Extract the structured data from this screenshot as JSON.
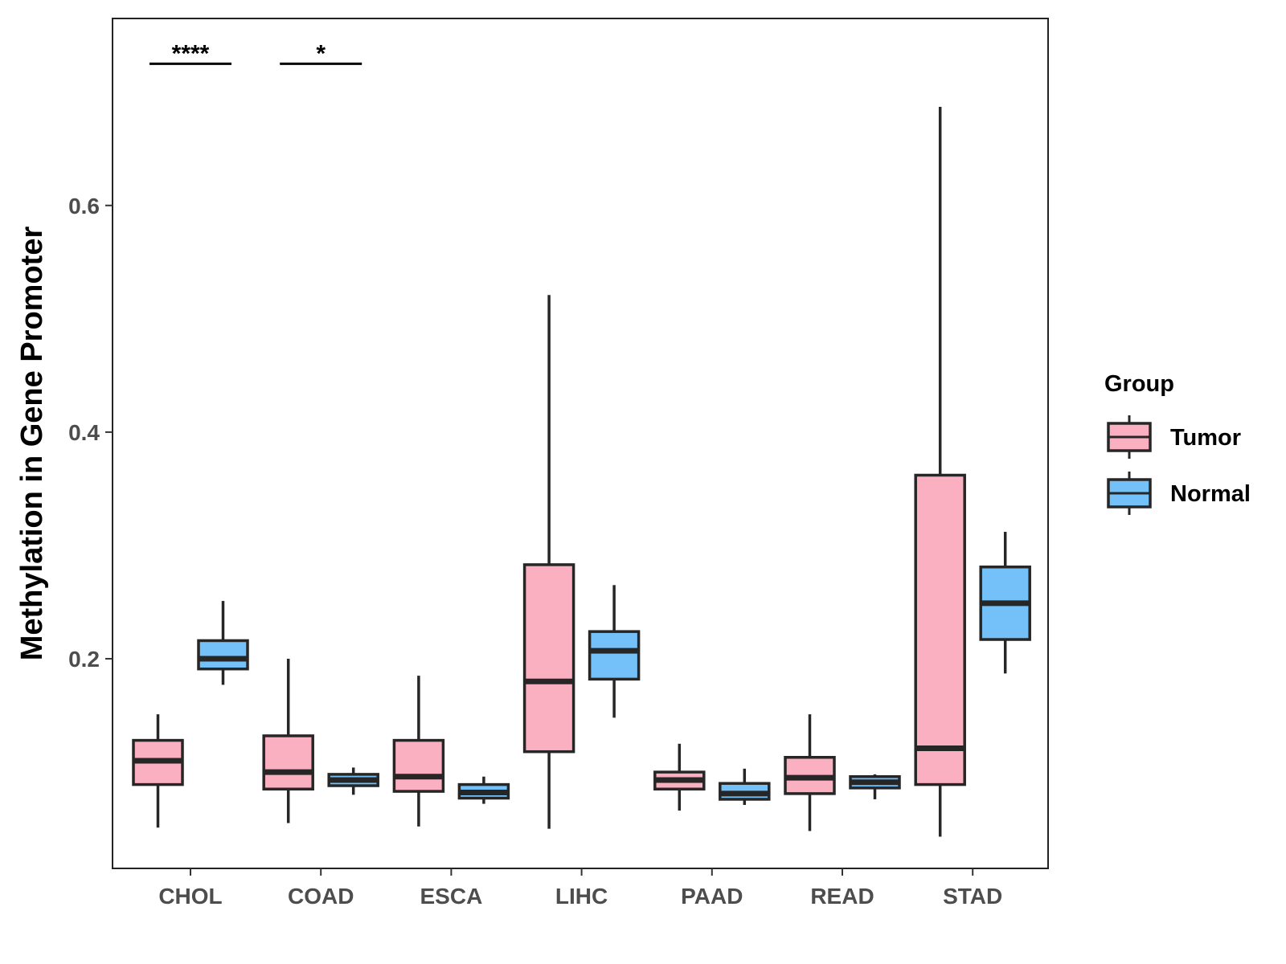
{
  "chart_data": {
    "type": "boxplot",
    "title": "",
    "xlabel": "",
    "ylabel": "Methylation in Gene Promoter",
    "ylim": [
      0.015,
      0.765
    ],
    "yticks": [
      0.2,
      0.4,
      0.6
    ],
    "ytick_labels": [
      "0.2",
      "0.4",
      "0.6"
    ],
    "categories": [
      "CHOL",
      "COAD",
      "ESCA",
      "LIHC",
      "PAAD",
      "READ",
      "STAD"
    ],
    "legend": {
      "title": "Group",
      "position": "right",
      "entries": [
        {
          "name": "Tumor",
          "color": "#FBB0C1"
        },
        {
          "name": "Normal",
          "color": "#74C1F9"
        }
      ]
    },
    "series": [
      {
        "name": "Tumor",
        "color": "#FBB0C1",
        "boxes": [
          {
            "category": "CHOL",
            "min": 0.051,
            "q1": 0.089,
            "median": 0.11,
            "q3": 0.128,
            "max": 0.151
          },
          {
            "category": "COAD",
            "min": 0.055,
            "q1": 0.085,
            "median": 0.1,
            "q3": 0.132,
            "max": 0.2
          },
          {
            "category": "ESCA",
            "min": 0.052,
            "q1": 0.083,
            "median": 0.096,
            "q3": 0.128,
            "max": 0.185
          },
          {
            "category": "LIHC",
            "min": 0.05,
            "q1": 0.118,
            "median": 0.18,
            "q3": 0.283,
            "max": 0.521
          },
          {
            "category": "PAAD",
            "min": 0.066,
            "q1": 0.085,
            "median": 0.093,
            "q3": 0.1,
            "max": 0.125
          },
          {
            "category": "READ",
            "min": 0.048,
            "q1": 0.081,
            "median": 0.095,
            "q3": 0.113,
            "max": 0.151
          },
          {
            "category": "STAD",
            "min": 0.043,
            "q1": 0.089,
            "median": 0.121,
            "q3": 0.362,
            "max": 0.687
          }
        ]
      },
      {
        "name": "Normal",
        "color": "#74C1F9",
        "boxes": [
          {
            "category": "CHOL",
            "min": 0.177,
            "q1": 0.191,
            "median": 0.2,
            "q3": 0.216,
            "max": 0.251
          },
          {
            "category": "COAD",
            "min": 0.08,
            "q1": 0.088,
            "median": 0.093,
            "q3": 0.098,
            "max": 0.104
          },
          {
            "category": "ESCA",
            "min": 0.072,
            "q1": 0.077,
            "median": 0.082,
            "q3": 0.089,
            "max": 0.096
          },
          {
            "category": "LIHC",
            "min": 0.148,
            "q1": 0.182,
            "median": 0.207,
            "q3": 0.224,
            "max": 0.265
          },
          {
            "category": "PAAD",
            "min": 0.071,
            "q1": 0.076,
            "median": 0.081,
            "q3": 0.09,
            "max": 0.103
          },
          {
            "category": "READ",
            "min": 0.076,
            "q1": 0.086,
            "median": 0.091,
            "q3": 0.096,
            "max": 0.098
          },
          {
            "category": "STAD",
            "min": 0.187,
            "q1": 0.217,
            "median": 0.249,
            "q3": 0.281,
            "max": 0.312
          }
        ]
      }
    ],
    "significance": [
      {
        "category": "CHOL",
        "label": "****",
        "y": 0.725
      },
      {
        "category": "COAD",
        "label": "*",
        "y": 0.725
      }
    ]
  }
}
